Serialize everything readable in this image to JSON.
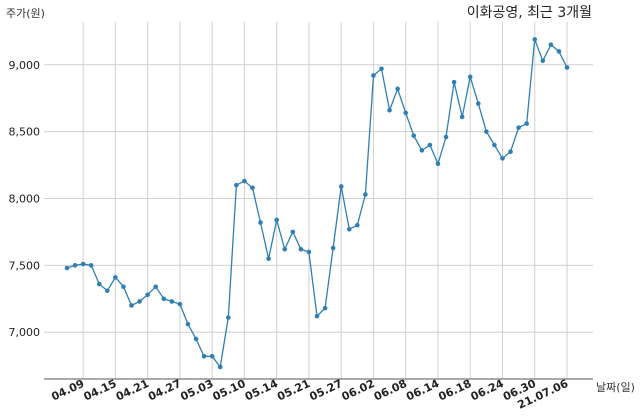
{
  "chart_data": {
    "type": "line",
    "title": "이화공영, 최근 3개월",
    "ylabel": "주가(원)",
    "xlabel": "날짜(일)",
    "ylim": [
      6650,
      9320
    ],
    "yticks": [
      7000,
      7500,
      8000,
      8500,
      9000
    ],
    "ytick_labels": [
      "7,000",
      "7,500",
      "8,000",
      "8,500",
      "9,000"
    ],
    "xtick_labels": [
      "04.09",
      "04.15",
      "04.21",
      "04.27",
      "05.03",
      "05.10",
      "05.14",
      "05.21",
      "05.27",
      "06.02",
      "06.08",
      "06.14",
      "06.18",
      "06.24",
      "06.30",
      "21.07.06"
    ],
    "xtick_index": [
      2,
      6,
      10,
      14,
      18,
      22,
      26,
      30,
      34,
      38,
      42,
      46,
      50,
      54,
      58,
      62
    ],
    "grid": true,
    "color": "#2f7fb5",
    "series": [
      {
        "values": [
          7480,
          7500,
          7510,
          7500,
          7360,
          7310,
          7410,
          7340,
          7200,
          7230,
          7280,
          7340,
          7250,
          7230,
          7210,
          7060,
          6950,
          6820,
          6820,
          6740,
          7110,
          8100,
          8130,
          8080,
          7820,
          7550,
          7840,
          7620,
          7750,
          7620,
          7600,
          7120,
          7180,
          7630,
          8090,
          7770,
          7800,
          8030,
          8920,
          8970,
          8660,
          8820,
          8640,
          8470,
          8360,
          8400,
          8260,
          8460,
          8870,
          8610,
          8910,
          8710,
          8500,
          8400,
          8300,
          8350,
          8530,
          8560,
          9190,
          9030,
          9150,
          9100,
          8980
        ]
      }
    ]
  }
}
